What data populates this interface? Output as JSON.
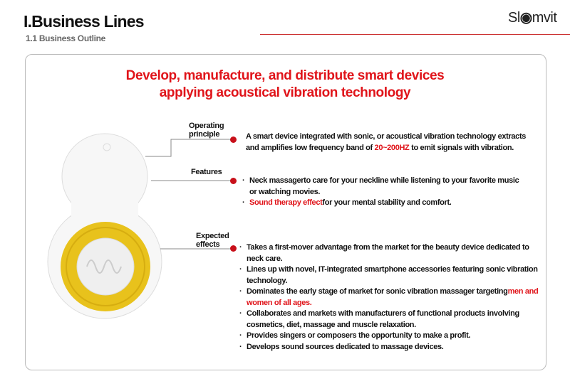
{
  "header": {
    "title": "I.Business Lines",
    "subtitle": "1.1 Business Outline",
    "logo": "Slomvit"
  },
  "headline": [
    "Develop, manufacture, and distribute smart devices",
    "applying acoustical vibration technology"
  ],
  "colors": {
    "accent": "#e0141a",
    "ring": "#e8c21c"
  },
  "sections": {
    "operating": {
      "label": [
        "Operating",
        "principle"
      ],
      "text_before": "A smart device integrated with sonic, or acoustical vibration technology extracts and amplifies low frequency band of ",
      "highlight": "20~200HZ",
      "text_after": " to emit signals with vibration."
    },
    "features": {
      "label": "Features",
      "items": [
        {
          "text": "Neck massagerto care for your neckline while  listening to your favorite music or watching movies.",
          "highlight": "",
          "rest": ""
        },
        {
          "text": "",
          "highlight": "Sound therapy effect",
          "rest": "for your mental stability and comfort."
        }
      ]
    },
    "effects": {
      "label": [
        "Expected",
        "effects"
      ],
      "items": [
        {
          "text": "Takes a first-mover advantage from the market for the beauty device dedicated to neck care.",
          "highlight": ""
        },
        {
          "text": "Lines up with novel, IT-integrated smartphone accessories featuring sonic vibration technology.",
          "highlight": ""
        },
        {
          "text": "Dominates the early stage of market  for sonic vibration massager targeting",
          "highlight": "men and women of all ages."
        },
        {
          "text": "Collaborates and markets with  manufacturers of functional products involving cosmetics, diet, massage and muscle relaxation.",
          "highlight": ""
        },
        {
          "text": "Provides singers or composers  the opportunity to make a profit.",
          "highlight": ""
        },
        {
          "text": "Develops sound sources dedicated to massage devices.",
          "highlight": ""
        }
      ]
    }
  }
}
